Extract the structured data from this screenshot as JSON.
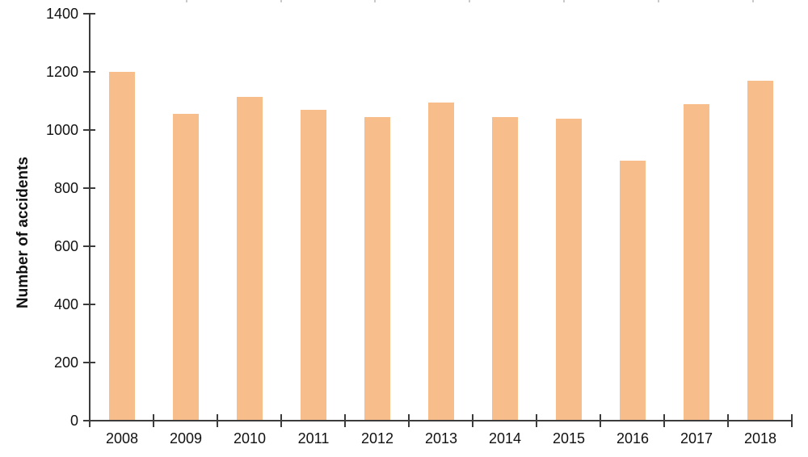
{
  "chart_data": {
    "type": "bar",
    "title": "",
    "categories": [
      "2008",
      "2009",
      "2010",
      "2011",
      "2012",
      "2013",
      "2014",
      "2015",
      "2016",
      "2017",
      "2018"
    ],
    "values": [
      1200,
      1055,
      1115,
      1070,
      1045,
      1095,
      1045,
      1040,
      895,
      1090,
      1170
    ],
    "xlabel": "",
    "ylabel": "Number of accidents",
    "ylim": [
      0,
      1400
    ],
    "yticks": [
      0,
      200,
      400,
      600,
      800,
      1000,
      1200,
      1400
    ],
    "grid": false,
    "legend": null,
    "bar_color": "#F7BD8A"
  },
  "style": {
    "background": "#ffffff",
    "axis_color": "#3c3c3c",
    "text_color": "#111111",
    "top_tick_color": "#c9c9c9"
  },
  "decor": {
    "top_tick_xs": [
      230,
      347,
      463,
      580,
      697,
      814,
      931
    ]
  }
}
